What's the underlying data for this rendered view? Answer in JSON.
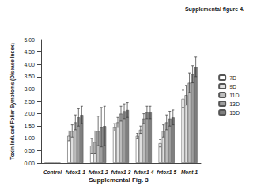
{
  "chart_data": {
    "type": "bar",
    "title": "Supplemental figure 4.",
    "subtitle": "Supplemental Fig. 3",
    "ylabel": "Toxin Induced Foliar Symptoms (Disease Index)",
    "categories": [
      "Control",
      "fvtox1-1",
      "fvtox1-2",
      "fvtox1-3",
      "fvtox1-4",
      "fvtox1-5",
      "Mont-1"
    ],
    "series": [
      {
        "name": "7D",
        "color": "#ffffff",
        "values": [
          0,
          1.1,
          0.7,
          1.45,
          1.1,
          0.8,
          2.6
        ],
        "errors": [
          0,
          0.2,
          0.3,
          0.15,
          0.1,
          0.15,
          0.35
        ]
      },
      {
        "name": "9D",
        "color": "#e0e0e0",
        "values": [
          0,
          1.3,
          0.85,
          1.65,
          1.35,
          1.3,
          2.75
        ],
        "errors": [
          0,
          0.25,
          0.45,
          0.2,
          0.15,
          0.25,
          0.4
        ]
      },
      {
        "name": "11D",
        "color": "#bdbdbd",
        "values": [
          0,
          1.65,
          1.3,
          2.0,
          1.8,
          1.65,
          3.25
        ],
        "errors": [
          0,
          0.3,
          0.6,
          0.3,
          0.2,
          0.3,
          0.4
        ]
      },
      {
        "name": "13D",
        "color": "#9e9e9e",
        "values": [
          0,
          1.85,
          1.45,
          2.1,
          2.05,
          1.8,
          3.6
        ],
        "errors": [
          0,
          0.35,
          0.8,
          0.3,
          0.25,
          0.3,
          0.35
        ]
      },
      {
        "name": "15D",
        "color": "#7f7f7f",
        "values": [
          0,
          1.95,
          1.5,
          2.15,
          2.05,
          1.85,
          3.9
        ],
        "errors": [
          0,
          0.35,
          0.8,
          0.3,
          0.25,
          0.3,
          0.4
        ]
      }
    ],
    "ylim": [
      0,
      5
    ],
    "yticks": [
      {
        "value": 0,
        "label": "0.00"
      },
      {
        "value": 0.5,
        "label": "0.50"
      },
      {
        "value": 1,
        "label": "1.00"
      },
      {
        "value": 1.5,
        "label": "1.50"
      },
      {
        "value": 2,
        "label": "2.00"
      },
      {
        "value": 2.5,
        "label": "2.50"
      },
      {
        "value": 3,
        "label": "3.00"
      },
      {
        "value": 3.5,
        "label": "3.50"
      },
      {
        "value": 4,
        "label": "4.00"
      },
      {
        "value": 4.5,
        "label": "4.50"
      },
      {
        "value": 5,
        "label": "5.00"
      }
    ],
    "grid": false,
    "legend": "right"
  }
}
